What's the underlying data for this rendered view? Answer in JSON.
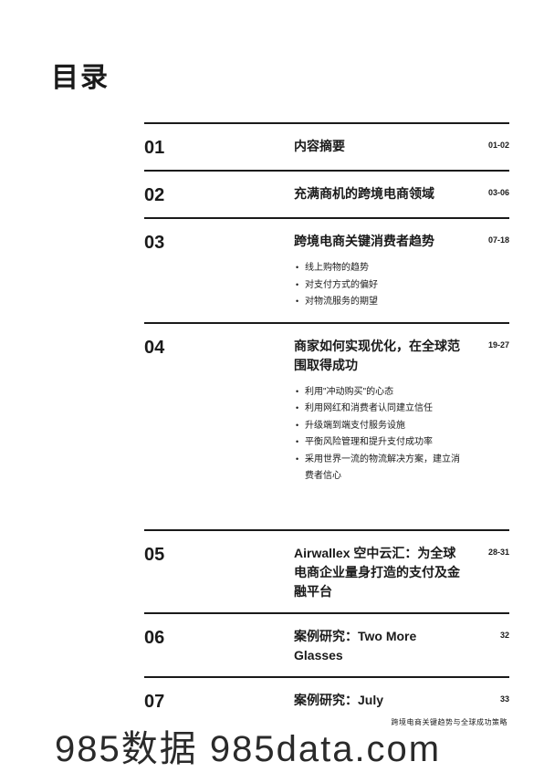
{
  "title": "目录",
  "toc": [
    {
      "num": "01",
      "title": "内容摘要",
      "pages": "01-02",
      "subs": []
    },
    {
      "num": "02",
      "title": "充满商机的跨境电商领域",
      "pages": "03-06",
      "subs": []
    },
    {
      "num": "03",
      "title": "跨境电商关键消费者趋势",
      "pages": "07-18",
      "subs": [
        "线上购物的趋势",
        "对支付方式的偏好",
        "对物流服务的期望"
      ]
    },
    {
      "num": "04",
      "title": "商家如何实现优化，在全球范围取得成功",
      "pages": "19-27",
      "subs": [
        "利用\"冲动购买\"的心态",
        "利用网红和消费者认同建立信任",
        "升级端到端支付服务设施",
        "平衡风险管理和提升支付成功率",
        "采用世界一流的物流解决方案，建立消费者信心"
      ]
    },
    {
      "num": "05",
      "title": "Airwallex 空中云汇：为全球电商企业量身打造的支付及金融平台",
      "pages": "28-31",
      "subs": []
    },
    {
      "num": "06",
      "title": "案例研究：Two More Glasses",
      "pages": "32",
      "subs": []
    },
    {
      "num": "07",
      "title": "案例研究：July",
      "pages": "33",
      "subs": []
    }
  ],
  "footer": "跨境电商关键趋势与全球成功策略",
  "watermark": "985数据 985data.com",
  "colors": {
    "text": "#1a1a1a",
    "bg": "#ffffff",
    "rule": "#1a1a1a"
  }
}
